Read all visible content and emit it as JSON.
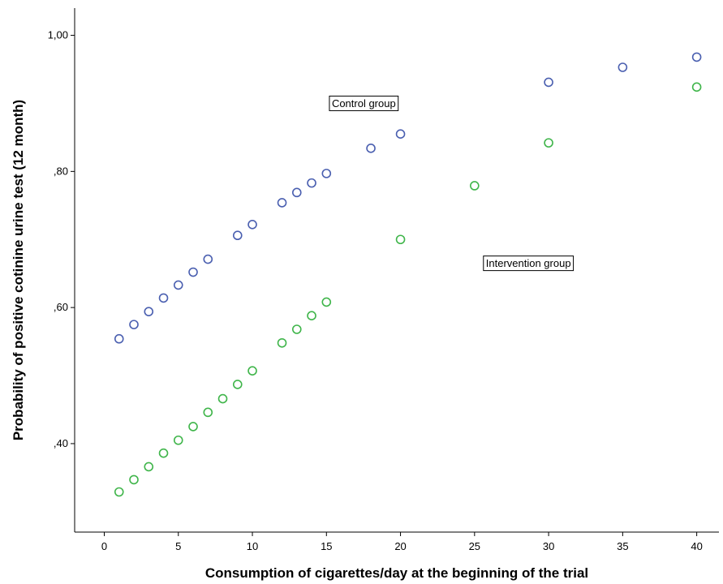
{
  "chart_data": {
    "type": "scatter",
    "xlabel": "Consumption of cigarettes/day at the beginning of the trial",
    "ylabel": "Probability of positive cotinine urine test (12 month)",
    "xlim": [
      -2,
      41.5
    ],
    "ylim": [
      0.27,
      1.04
    ],
    "xticks": [
      0,
      5,
      10,
      15,
      20,
      25,
      30,
      35,
      40
    ],
    "xtick_labels": [
      "0",
      "5",
      "10",
      "15",
      "20",
      "25",
      "30",
      "35",
      "40"
    ],
    "yticks": [
      0.4,
      0.6,
      0.8,
      1.0
    ],
    "ytick_labels": [
      ",40",
      ",60",
      ",80",
      "1,00"
    ],
    "grid": false,
    "legend": "none",
    "series": [
      {
        "color": "#4a5fb0",
        "x": [
          1,
          2,
          3,
          4,
          5,
          6,
          7,
          9,
          10,
          12,
          13,
          14,
          15,
          18,
          20,
          30,
          35,
          40
        ],
        "y": [
          0.554,
          0.575,
          0.594,
          0.614,
          0.633,
          0.652,
          0.671,
          0.706,
          0.722,
          0.754,
          0.769,
          0.783,
          0.797,
          0.834,
          0.855,
          0.931,
          0.953,
          0.968
        ]
      },
      {
        "color": "#3fb54a",
        "x": [
          1,
          2,
          3,
          4,
          5,
          6,
          7,
          8,
          9,
          10,
          12,
          13,
          14,
          15,
          20,
          25,
          30,
          40
        ],
        "y": [
          0.329,
          0.347,
          0.366,
          0.386,
          0.405,
          0.425,
          0.446,
          0.466,
          0.487,
          0.507,
          0.548,
          0.568,
          0.588,
          0.608,
          0.7,
          0.779,
          0.842,
          0.924
        ]
      }
    ],
    "annotations": [
      {
        "text": "Control group",
        "x": 15.2,
        "y": 0.9
      },
      {
        "text": "Intervention group",
        "x": 25.6,
        "y": 0.665
      }
    ]
  }
}
